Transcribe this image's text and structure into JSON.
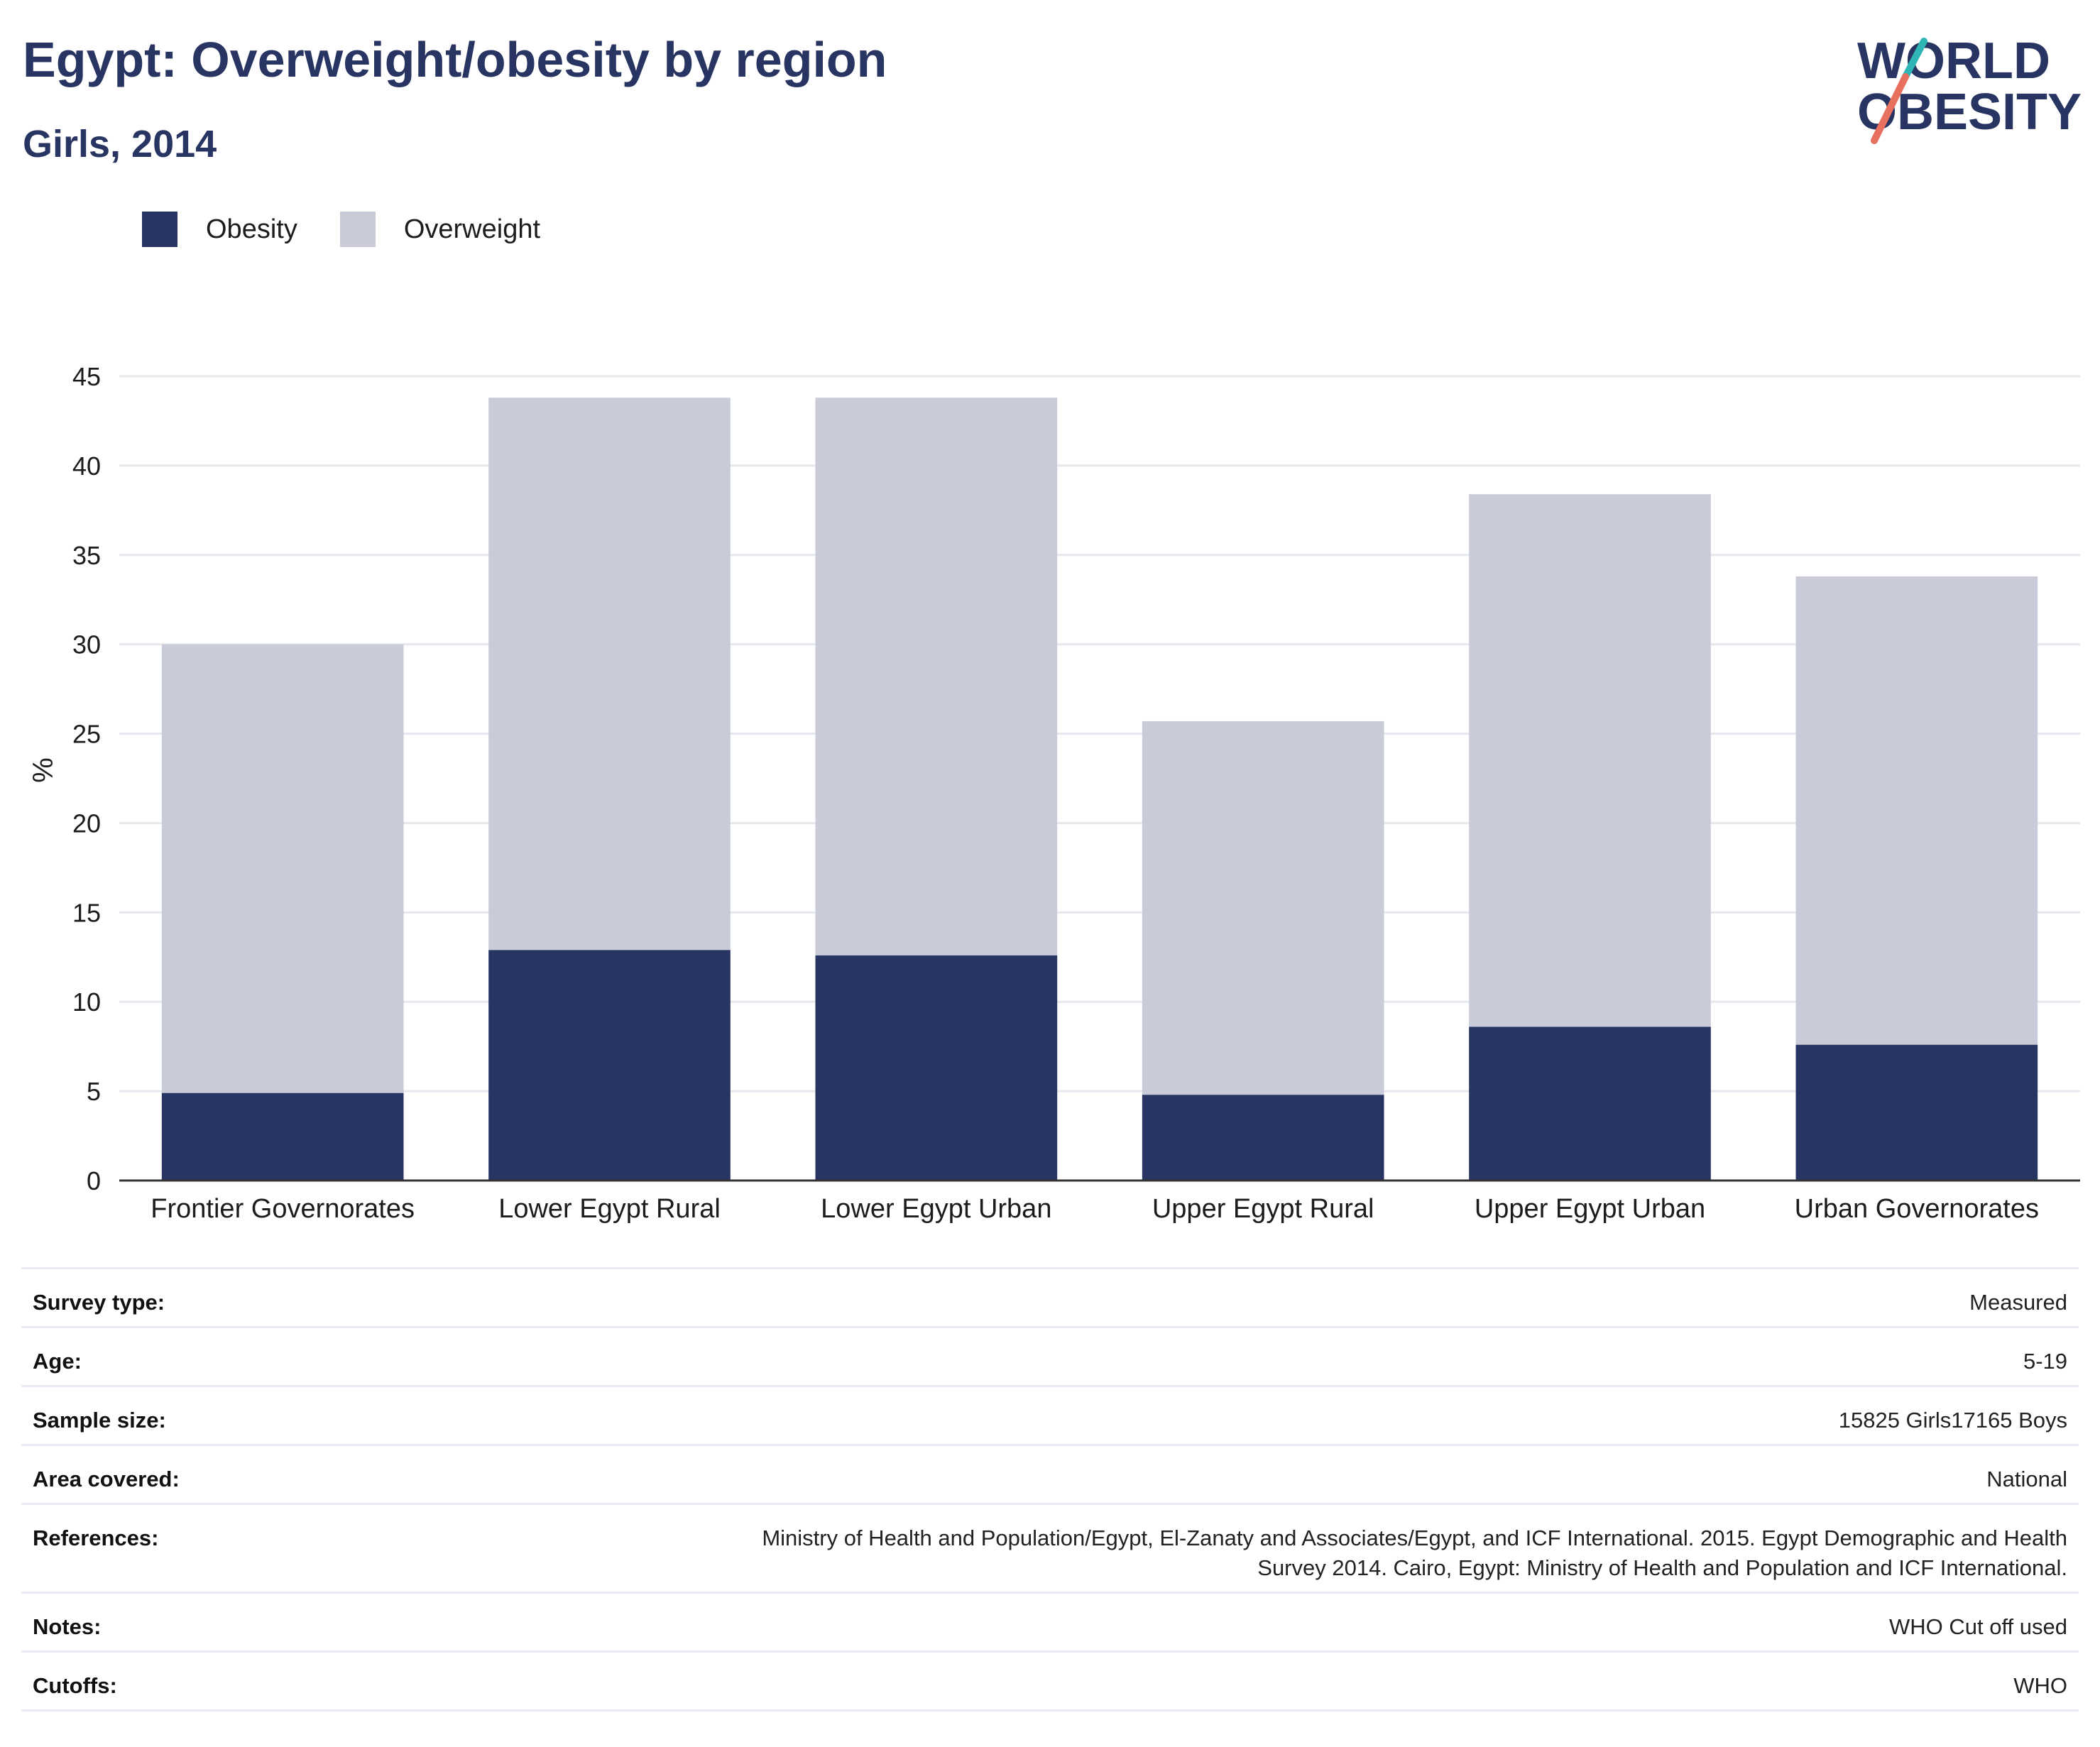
{
  "title": "Egypt: Overweight/obesity by region",
  "subtitle": "Girls, 2014",
  "logo": {
    "line1": "WORLD",
    "line2": "OBESITY",
    "colors": {
      "teal": "#2fb5b5",
      "coral": "#e8705f",
      "navy": "#283462"
    }
  },
  "colors": {
    "obesity": "#283462",
    "overweight": "#c9ccd8",
    "grid": "#e6e8ee",
    "axis": "#333333"
  },
  "chart_data": {
    "type": "bar",
    "stacked": true,
    "categories": [
      "Frontier Governorates",
      "Lower Egypt Rural",
      "Lower Egypt Urban",
      "Upper Egypt Rural",
      "Upper Egypt Urban",
      "Urban Governorates"
    ],
    "series": [
      {
        "name": "Obesity",
        "values": [
          4.9,
          12.9,
          12.6,
          4.8,
          8.6,
          7.6
        ]
      },
      {
        "name": "Overweight",
        "values": [
          25.1,
          30.9,
          31.2,
          20.9,
          29.8,
          26.2
        ]
      }
    ],
    "ylabel": "%",
    "ylim": [
      0,
      45
    ],
    "yticks": [
      "0",
      "5",
      "10",
      "15",
      "20",
      "25",
      "30",
      "35",
      "40",
      "45"
    ],
    "grid": true,
    "legend_position": "top-left"
  },
  "meta": [
    {
      "key": "Survey type:",
      "value": "Measured"
    },
    {
      "key": "Age:",
      "value": "5-19"
    },
    {
      "key": "Sample size:",
      "value": "15825 Girls17165 Boys"
    },
    {
      "key": "Area covered:",
      "value": "National"
    },
    {
      "key": "References:",
      "value_lines": [
        "Ministry of Health and Population/Egypt, El-Zanaty and Associates/Egypt, and ICF International. 2015. Egypt Demographic and Health",
        "Survey 2014. Cairo, Egypt: Ministry of Health and Population and ICF International."
      ]
    },
    {
      "key": "Notes:",
      "value": "WHO Cut off used"
    },
    {
      "key": "Cutoffs:",
      "value": "WHO"
    }
  ]
}
